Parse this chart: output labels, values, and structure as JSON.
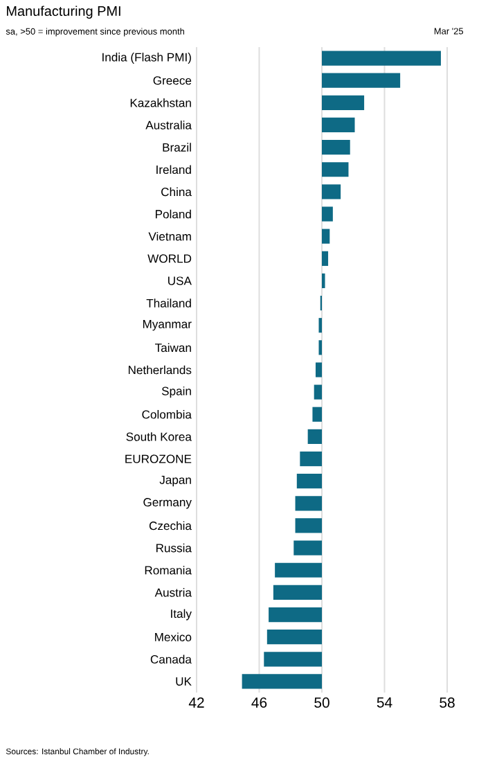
{
  "chart_data": {
    "type": "bar",
    "orientation": "horizontal",
    "title": "Manufacturing PMI",
    "subtitle": "sa, >50 = improvement since previous month",
    "annotations": [
      "Mar '25",
      "Sources: Istanbul Chamber of Industry."
    ],
    "categories": [
      "India (Flash PMI)",
      "Greece",
      "Kazakhstan",
      "Australia",
      "Brazil",
      "Ireland",
      "China",
      "Poland",
      "Vietnam",
      "WORLD",
      "USA",
      "Thailand",
      "Myanmar",
      "Taiwan",
      "Netherlands",
      "Spain",
      "Colombia",
      "South Korea",
      "EUROZONE",
      "Japan",
      "Germany",
      "Czechia",
      "Russia",
      "Romania",
      "Austria",
      "Italy",
      "Mexico",
      "Canada",
      "UK"
    ],
    "values": [
      7.6,
      5.0,
      2.7,
      2.1,
      1.8,
      1.7,
      1.2,
      0.7,
      0.5,
      0.4,
      0.2,
      -0.1,
      -0.2,
      -0.2,
      -0.4,
      -0.5,
      -0.6,
      -0.9,
      -1.4,
      -1.6,
      -1.7,
      -1.7,
      -1.8,
      -3.0,
      -3.1,
      -3.4,
      -3.5,
      -3.7,
      -5.1
    ],
    "base": [
      50,
      50,
      50,
      50,
      50,
      50,
      50,
      50,
      50,
      50,
      50,
      50,
      50,
      50,
      50,
      50,
      50,
      50,
      50,
      50,
      50,
      50,
      50,
      50,
      50,
      50,
      50,
      50,
      50
    ],
    "color": "#0e6a85",
    "xlim": [
      42,
      58
    ],
    "xticks": [
      42,
      46,
      50,
      54,
      58
    ],
    "grid": "x"
  }
}
